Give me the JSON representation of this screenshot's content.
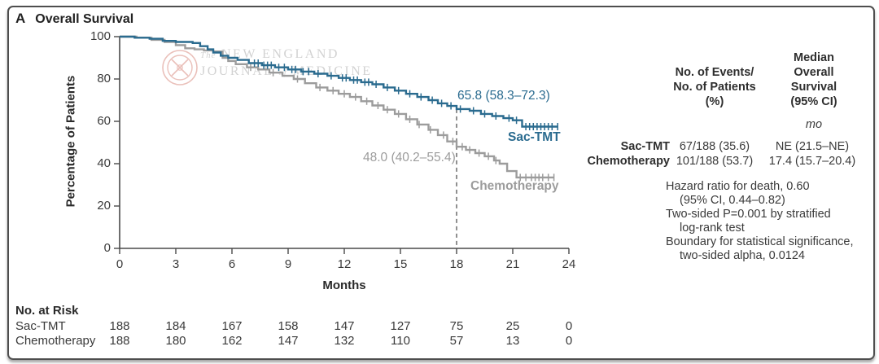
{
  "panel_label": "A",
  "title": "Overall Survival",
  "watermark": {
    "prefix": "The",
    "line1": "NEW ENGLAND",
    "journal": "JOURNAL",
    "of": "of",
    "medicine": "MEDICINE"
  },
  "chart_data": {
    "type": "line",
    "subtype": "kaplan-meier-step",
    "title": "Overall Survival",
    "xlabel": "Months",
    "ylabel": "Percentage of Patients",
    "xlim": [
      0,
      24
    ],
    "ylim": [
      0,
      100
    ],
    "x_ticks": [
      0,
      3,
      6,
      9,
      12,
      15,
      18,
      21,
      24
    ],
    "y_ticks": [
      0,
      20,
      40,
      60,
      80,
      100
    ],
    "grid": false,
    "reference_line_x": 18,
    "axis_color": "#4a4a4a",
    "series": [
      {
        "name": "Sac-TMT",
        "color": "#2a6b8f",
        "annotation": "65.8 (58.3–72.3)",
        "points": [
          [
            0,
            100
          ],
          [
            0.8,
            99.5
          ],
          [
            1.6,
            99
          ],
          [
            2.3,
            98
          ],
          [
            3,
            97.5
          ],
          [
            3.9,
            97
          ],
          [
            4.3,
            95.5
          ],
          [
            4.7,
            94
          ],
          [
            5,
            92.5
          ],
          [
            5.4,
            91
          ],
          [
            5.8,
            90
          ],
          [
            6.3,
            89
          ],
          [
            6.9,
            87.5
          ],
          [
            7.6,
            86.5
          ],
          [
            8.3,
            85.5
          ],
          [
            9,
            84.5
          ],
          [
            9.7,
            83.5
          ],
          [
            10.4,
            82.5
          ],
          [
            11.1,
            81.5
          ],
          [
            11.7,
            80.5
          ],
          [
            12.3,
            79.5
          ],
          [
            12.9,
            78.5
          ],
          [
            13.5,
            77.5
          ],
          [
            14.1,
            76
          ],
          [
            14.7,
            74.5
          ],
          [
            15.3,
            73
          ],
          [
            15.9,
            71.5
          ],
          [
            16.5,
            70
          ],
          [
            17,
            68.5
          ],
          [
            17.5,
            67.3
          ],
          [
            18,
            65.8
          ],
          [
            18.7,
            65
          ],
          [
            19.3,
            63.5
          ],
          [
            19.9,
            62.5
          ],
          [
            20.5,
            61.5
          ],
          [
            21,
            60.5
          ],
          [
            21.5,
            57.5
          ],
          [
            23.4,
            57.5
          ]
        ],
        "censor_months": [
          7.2,
          7.4,
          7.7,
          7.9,
          8.1,
          8.5,
          8.8,
          9.2,
          9.4,
          9.8,
          10.1,
          10.6,
          11.3,
          11.9,
          12.1,
          12.5,
          12.7,
          13.1,
          13.3,
          13.7,
          14.3,
          14.9,
          15.5,
          16.1,
          16.7,
          17.2,
          17.7,
          18.2,
          18.9,
          19.5,
          20.1,
          20.8,
          21.2,
          21.7,
          21.9,
          22.1,
          22.3,
          22.5,
          22.7,
          22.9,
          23.1,
          23.4
        ]
      },
      {
        "name": "Chemotherapy",
        "color": "#9c9c9c",
        "annotation": "48.0 (40.2–55.4)",
        "points": [
          [
            0,
            100
          ],
          [
            0.9,
            99.5
          ],
          [
            1.7,
            98.5
          ],
          [
            2.4,
            97.5
          ],
          [
            3,
            96
          ],
          [
            3.5,
            94.5
          ],
          [
            4,
            94
          ],
          [
            4.5,
            93.5
          ],
          [
            5,
            93
          ],
          [
            5.5,
            90
          ],
          [
            5.8,
            88.5
          ],
          [
            6.2,
            87
          ],
          [
            6.8,
            85.5
          ],
          [
            7.4,
            84.5
          ],
          [
            8,
            83
          ],
          [
            8.7,
            81.5
          ],
          [
            9.3,
            80
          ],
          [
            9.9,
            78
          ],
          [
            10.5,
            76
          ],
          [
            11.1,
            74.5
          ],
          [
            11.7,
            73
          ],
          [
            12.3,
            71.5
          ],
          [
            12.9,
            69.5
          ],
          [
            13.5,
            67.5
          ],
          [
            14.1,
            65.5
          ],
          [
            14.7,
            63.5
          ],
          [
            15.3,
            61
          ],
          [
            15.9,
            58.5
          ],
          [
            16.5,
            56
          ],
          [
            17,
            53.5
          ],
          [
            17.5,
            50.5
          ],
          [
            18,
            48
          ],
          [
            18.5,
            46.5
          ],
          [
            19,
            45
          ],
          [
            19.5,
            43.5
          ],
          [
            20,
            41.5
          ],
          [
            20.3,
            40
          ],
          [
            20.7,
            36.5
          ],
          [
            21.2,
            33.5
          ],
          [
            23.2,
            33.5
          ]
        ],
        "censor_months": [
          7.0,
          8.2,
          9.5,
          10.7,
          11.4,
          12.0,
          12.6,
          13.2,
          13.8,
          14.3,
          14.9,
          15.5,
          16.0,
          16.6,
          17.3,
          17.8,
          18.3,
          18.7,
          19.2,
          19.7,
          20.1,
          21.4,
          21.7,
          22.0,
          22.2,
          22.4,
          22.6,
          22.9,
          23.2
        ]
      }
    ]
  },
  "risk_table": {
    "title": "No. at Risk",
    "months": [
      0,
      3,
      6,
      9,
      12,
      15,
      18,
      21,
      24
    ],
    "rows": [
      {
        "label": "Sac-TMT",
        "values": [
          "188",
          "184",
          "167",
          "158",
          "147",
          "127",
          "75",
          "25",
          "0"
        ]
      },
      {
        "label": "Chemotherapy",
        "values": [
          "188",
          "180",
          "162",
          "147",
          "132",
          "110",
          "57",
          "13",
          "0"
        ]
      }
    ]
  },
  "stats_panel": {
    "col1_header": [
      "No. of Events/",
      "No. of Patients",
      "(%)"
    ],
    "col2_header": [
      "Median",
      "Overall",
      "Survival",
      "(95% CI)"
    ],
    "unit": "mo",
    "rows": [
      {
        "label": "Sac-TMT",
        "events": "67/188 (35.6)",
        "median": "NE (21.5–NE)"
      },
      {
        "label": "Chemotherapy",
        "events": "101/188 (53.7)",
        "median": "17.4 (15.7–20.4)"
      }
    ],
    "notes": [
      {
        "text": "Hazard ratio for death, 0.60",
        "indent": false
      },
      {
        "text": "(95% CI, 0.44–0.82)",
        "indent": true
      },
      {
        "text": "Two-sided P=0.001 by stratified",
        "indent": false
      },
      {
        "text": "log-rank test",
        "indent": true
      },
      {
        "text": "Boundary for statistical significance,",
        "indent": false
      },
      {
        "text": "two-sided alpha, 0.0124",
        "indent": true
      }
    ]
  }
}
